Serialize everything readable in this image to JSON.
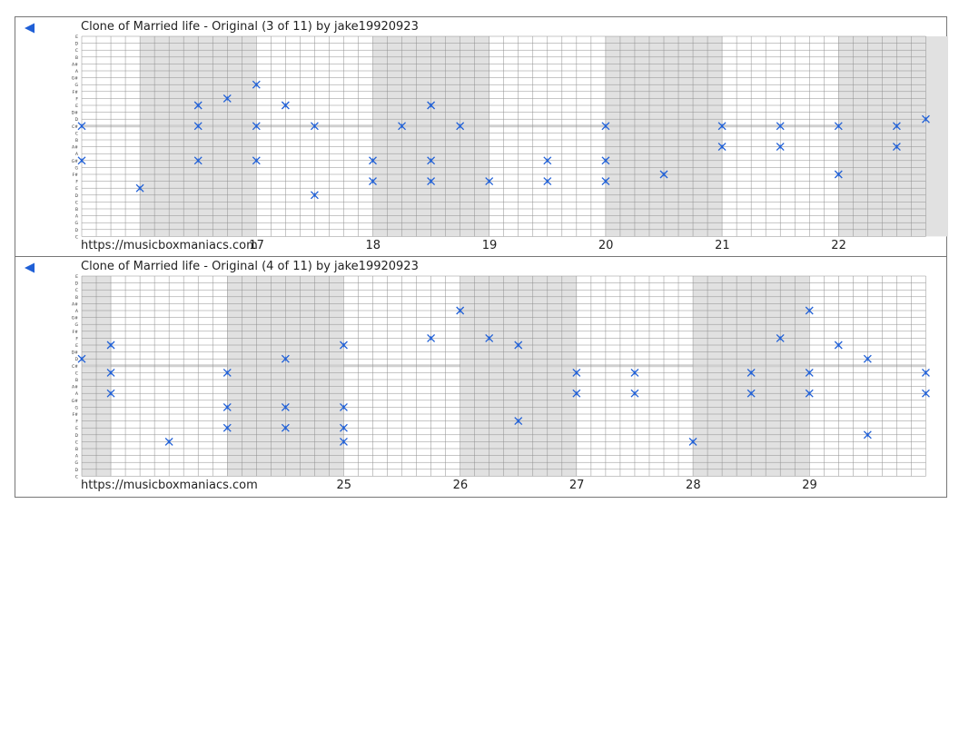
{
  "colors": {
    "note": "#1f5fd6",
    "shade": "#e1e1e1",
    "grid_line": "#8f8f8f",
    "center_line": "#cfcfcf",
    "back_arrow": "#1f5fd6"
  },
  "pitch_labels": [
    "E",
    "D",
    "C",
    "B",
    "A#",
    "A",
    "G#",
    "G",
    "F#",
    "F",
    "E",
    "D#",
    "D",
    "C#",
    "C",
    "B",
    "A#",
    "A",
    "G#",
    "G",
    "F#",
    "F",
    "E",
    "D",
    "C",
    "B",
    "A",
    "G",
    "D",
    "C"
  ],
  "panels": [
    {
      "title": "Clone of Married life - Original (3 of 11) by jake19920923",
      "website": "https://musicboxmaniacs.com",
      "measures": [
        "17",
        "18",
        "19",
        "20",
        "21",
        "22"
      ],
      "shaded_beats": [
        [
          2,
          6
        ],
        [
          10,
          14
        ],
        [
          18,
          22
        ],
        [
          26,
          30
        ]
      ],
      "notes": [
        {
          "beat": 0,
          "row": 13
        },
        {
          "beat": 0,
          "row": 18
        },
        {
          "beat": 2,
          "row": 22
        },
        {
          "beat": 4,
          "row": 10
        },
        {
          "beat": 4,
          "row": 13
        },
        {
          "beat": 4,
          "row": 18
        },
        {
          "beat": 5,
          "row": 9
        },
        {
          "beat": 6,
          "row": 7
        },
        {
          "beat": 6,
          "row": 13
        },
        {
          "beat": 6,
          "row": 18
        },
        {
          "beat": 7,
          "row": 10
        },
        {
          "beat": 8,
          "row": 13
        },
        {
          "beat": 8,
          "row": 23
        },
        {
          "beat": 10,
          "row": 18
        },
        {
          "beat": 10,
          "row": 21
        },
        {
          "beat": 11,
          "row": 13
        },
        {
          "beat": 12,
          "row": 10
        },
        {
          "beat": 12,
          "row": 18
        },
        {
          "beat": 12,
          "row": 21
        },
        {
          "beat": 13,
          "row": 13
        },
        {
          "beat": 14,
          "row": 21
        },
        {
          "beat": 16,
          "row": 18
        },
        {
          "beat": 16,
          "row": 21
        },
        {
          "beat": 18,
          "row": 13
        },
        {
          "beat": 18,
          "row": 18
        },
        {
          "beat": 18,
          "row": 21
        },
        {
          "beat": 20,
          "row": 20
        },
        {
          "beat": 22,
          "row": 13
        },
        {
          "beat": 22,
          "row": 16
        },
        {
          "beat": 24,
          "row": 13
        },
        {
          "beat": 24,
          "row": 16
        },
        {
          "beat": 26,
          "row": 13
        },
        {
          "beat": 26,
          "row": 20
        },
        {
          "beat": 28,
          "row": 13
        },
        {
          "beat": 28,
          "row": 16
        },
        {
          "beat": 29,
          "row": 12
        }
      ]
    },
    {
      "title": "Clone of Married life - Original (4 of 11) by jake19920923",
      "website": "https://musicboxmaniacs.com",
      "measures": [
        "25",
        "26",
        "27",
        "28",
        "29"
      ],
      "shaded_beats": [
        [
          0,
          1
        ],
        [
          5,
          9
        ],
        [
          13,
          17
        ],
        [
          21,
          25
        ]
      ],
      "notes": [
        {
          "beat": 0,
          "row": 12
        },
        {
          "beat": 1,
          "row": 10
        },
        {
          "beat": 1,
          "row": 14
        },
        {
          "beat": 1,
          "row": 17
        },
        {
          "beat": 3,
          "row": 24
        },
        {
          "beat": 5,
          "row": 14
        },
        {
          "beat": 5,
          "row": 19
        },
        {
          "beat": 5,
          "row": 22
        },
        {
          "beat": 7,
          "row": 12
        },
        {
          "beat": 7,
          "row": 19
        },
        {
          "beat": 7,
          "row": 22
        },
        {
          "beat": 9,
          "row": 10
        },
        {
          "beat": 9,
          "row": 19
        },
        {
          "beat": 9,
          "row": 22
        },
        {
          "beat": 9,
          "row": 24
        },
        {
          "beat": 12,
          "row": 9
        },
        {
          "beat": 13,
          "row": 5
        },
        {
          "beat": 14,
          "row": 9
        },
        {
          "beat": 15,
          "row": 10
        },
        {
          "beat": 15,
          "row": 21
        },
        {
          "beat": 17,
          "row": 14
        },
        {
          "beat": 17,
          "row": 17
        },
        {
          "beat": 19,
          "row": 14
        },
        {
          "beat": 19,
          "row": 17
        },
        {
          "beat": 21,
          "row": 24
        },
        {
          "beat": 23,
          "row": 14
        },
        {
          "beat": 23,
          "row": 17
        },
        {
          "beat": 24,
          "row": 9
        },
        {
          "beat": 25,
          "row": 5
        },
        {
          "beat": 25,
          "row": 14
        },
        {
          "beat": 25,
          "row": 17
        },
        {
          "beat": 26,
          "row": 10
        },
        {
          "beat": 27,
          "row": 12
        },
        {
          "beat": 27,
          "row": 23
        },
        {
          "beat": 29,
          "row": 14
        },
        {
          "beat": 29,
          "row": 17
        }
      ]
    }
  ]
}
